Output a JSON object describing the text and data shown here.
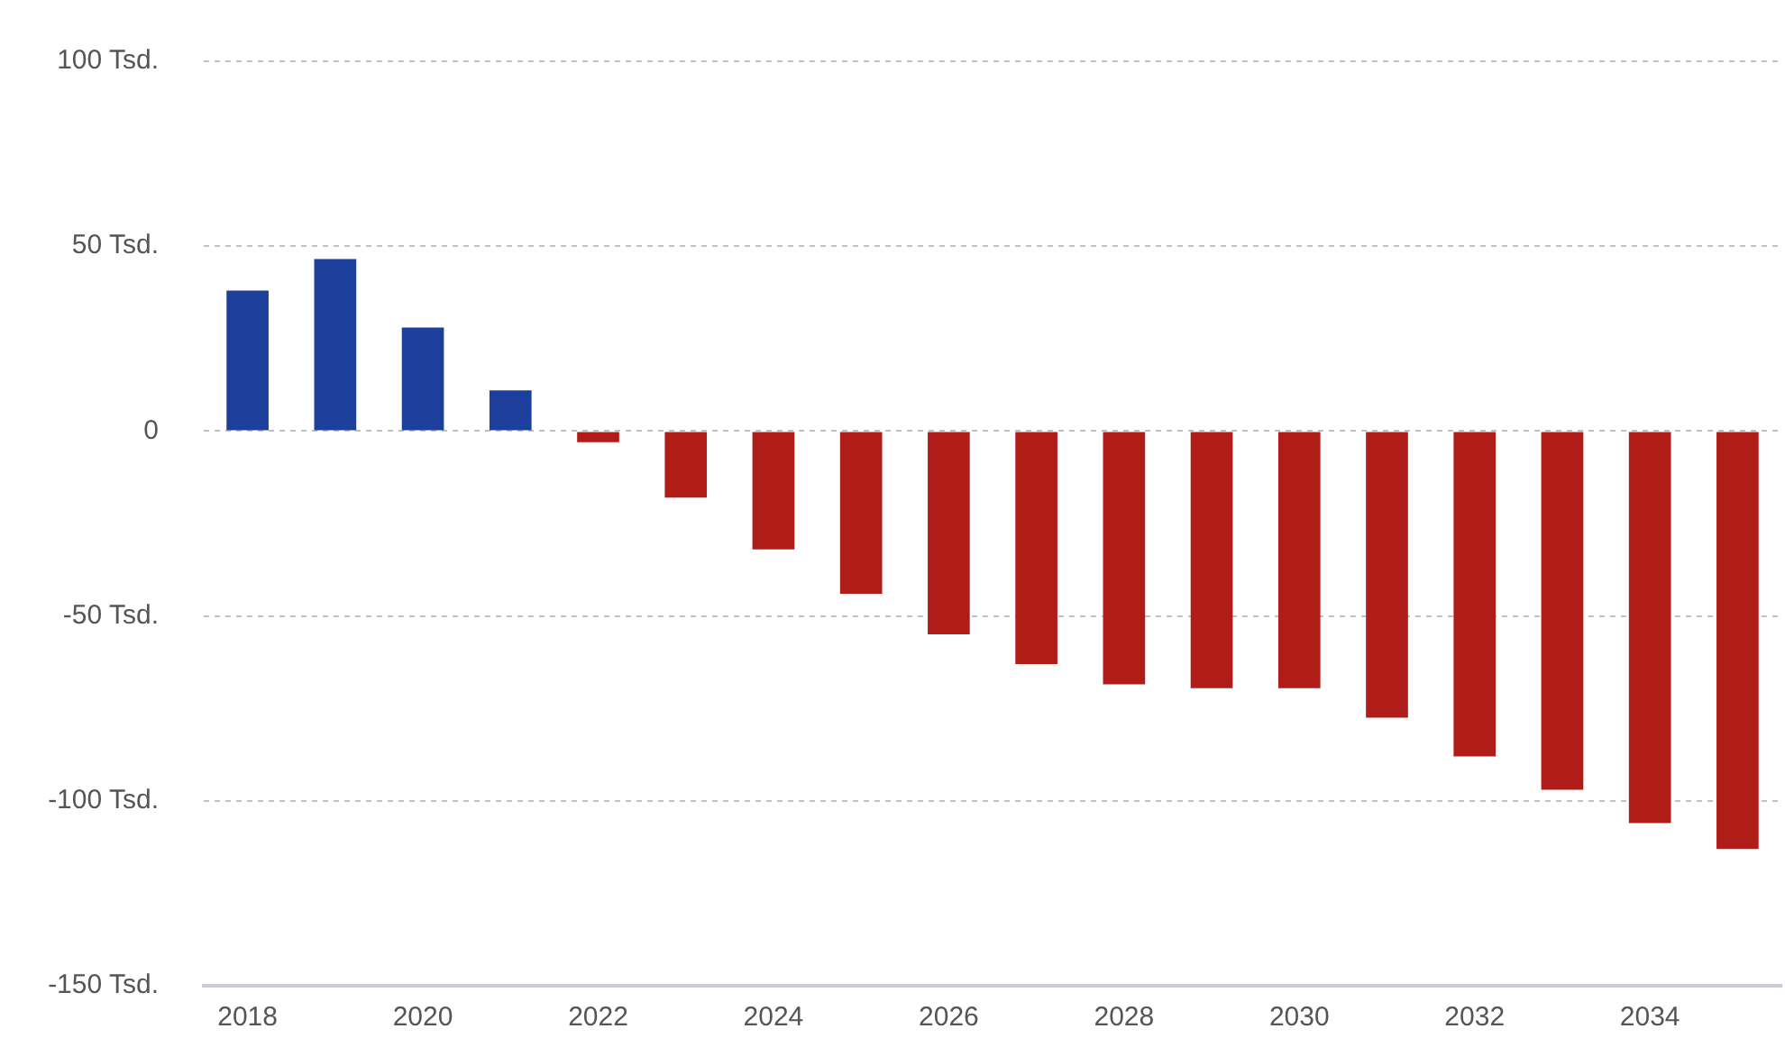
{
  "chart_data": {
    "type": "bar",
    "categories": [
      "2018",
      null,
      "2020",
      null,
      "2022",
      null,
      "2024",
      null,
      "2026",
      null,
      "2028",
      null,
      "2030",
      null,
      "2032",
      null,
      "2034",
      null
    ],
    "values": [
      38,
      46.5,
      28,
      11,
      -3,
      -18,
      -32,
      -44,
      -55,
      -63,
      -68.5,
      -69.5,
      -69.5,
      -77.5,
      -88,
      -97,
      -106,
      -113
    ],
    "colors": [
      "#1c3f9b",
      "#1c3f9b",
      "#1c3f9b",
      "#1c3f9b",
      "#b01c18",
      "#b01c18",
      "#b01c18",
      "#b01c18",
      "#b01c18",
      "#b01c18",
      "#b01c18",
      "#b01c18",
      "#b01c18",
      "#b01c18",
      "#b01c18",
      "#b01c18",
      "#b01c18",
      "#b01c18"
    ],
    "ylim": [
      -150,
      100
    ],
    "yticks": [
      {
        "value": -150,
        "label": "-150 Tsd."
      },
      {
        "value": -100,
        "label": "-100 Tsd."
      },
      {
        "value": -50,
        "label": "-50 Tsd."
      },
      0,
      {
        "value": 50,
        "label": "50 Tsd."
      },
      {
        "value": 100,
        "label": "100 Tsd."
      }
    ],
    "grid": "y",
    "legend": false
  }
}
